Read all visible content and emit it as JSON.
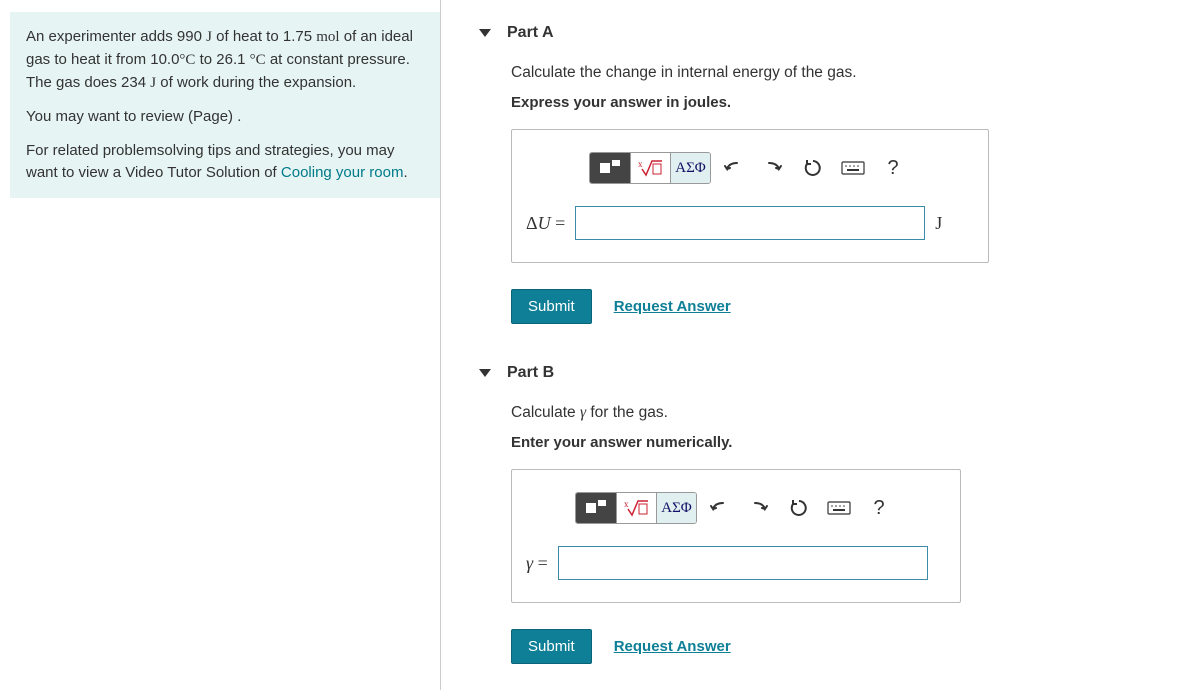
{
  "problem": {
    "paragraph1_html": "An experimenter adds 990 <span class='math-rm'>J</span> of heat to 1.75 <span class='math-rm'>mol</span> of an ideal gas to heat it from 10.0<span class='math-rm'>°C</span> to 26.1 <span class='math-rm'>°C</span> at constant pressure. The gas does 234 <span class='math-rm'>J</span> of work during the expansion.",
    "paragraph2": "You may want to review (Page) .",
    "paragraph3_prefix": "For related problemsolving tips and strategies, you may want to view a Video Tutor Solution of ",
    "paragraph3_link": "Cooling your room",
    "paragraph3_suffix": "."
  },
  "partA": {
    "title": "Part A",
    "prompt": "Calculate the change in internal energy of the gas.",
    "instruction": "Express your answer in joules.",
    "lhs_html": "Δ<span class='math-it'>U</span> =",
    "unit": "J",
    "submit": "Submit",
    "request": "Request Answer",
    "toolbar": {
      "greek": "ΑΣΦ",
      "help": "?"
    }
  },
  "partB": {
    "title": "Part B",
    "prompt_html": "Calculate <span class='gamma'>γ</span> for the gas.",
    "instruction": "Enter your answer numerically.",
    "lhs_html": "<span class='gamma'>γ</span> =",
    "submit": "Submit",
    "request": "Request Answer",
    "toolbar": {
      "greek": "ΑΣΦ",
      "help": "?"
    }
  },
  "colors": {
    "info_bg": "#e6f5f3",
    "link": "#007a8a",
    "submit_bg": "#0e7f96",
    "input_border": "#3a8aa8"
  }
}
